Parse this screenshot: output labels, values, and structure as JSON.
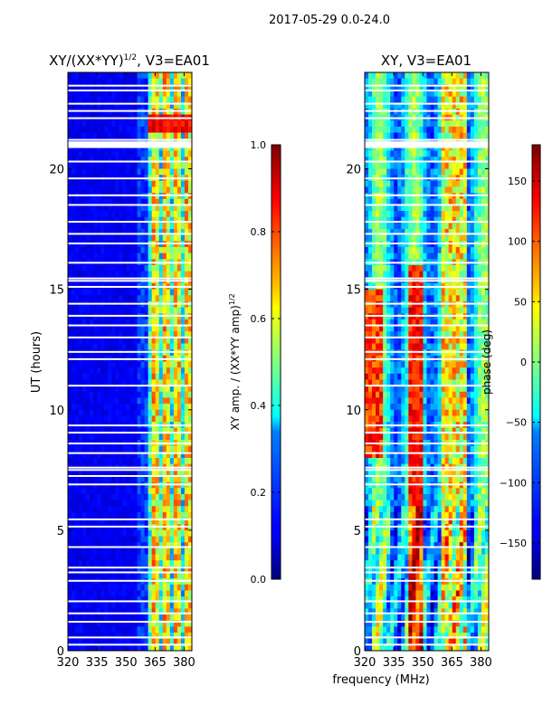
{
  "figure_title": "2017-05-29 0.0-24.0",
  "shared_xlabel": "frequency (MHz)",
  "chart_data": [
    {
      "type": "heatmap",
      "title_main": "XY/(XX*YY)",
      "title_sup": "1/2",
      "title_rest": ", V3=EA01",
      "xlabel": "",
      "ylabel": "UT (hours)",
      "xlim": [
        320,
        384
      ],
      "ylim": [
        0,
        24
      ],
      "xticks": [
        320,
        335,
        350,
        365,
        380
      ],
      "yticks": [
        0,
        5,
        10,
        15,
        20
      ],
      "colormap": "jet",
      "colorbar": {
        "label_main": "XY amp. / (XX*YY amp)",
        "label_sup": "1/2",
        "range": [
          0.0,
          1.0
        ],
        "ticks": [
          "0.0",
          "0.2",
          "0.4",
          "0.6",
          "0.8",
          "1.0"
        ]
      }
    },
    {
      "type": "heatmap",
      "title_main": "XY, V3=EA01",
      "xlabel": "",
      "ylabel": "",
      "xlim": [
        320,
        384
      ],
      "ylim": [
        0,
        24
      ],
      "xticks": [
        320,
        335,
        350,
        365,
        380
      ],
      "yticks": [
        0,
        5,
        10,
        15,
        20
      ],
      "colormap": "jet",
      "colorbar": {
        "label_main": "phase (deg)",
        "range": [
          -180,
          180
        ],
        "ticks": [
          "150",
          "100",
          "50",
          "0",
          "−50",
          "−100",
          "−150"
        ]
      }
    }
  ]
}
